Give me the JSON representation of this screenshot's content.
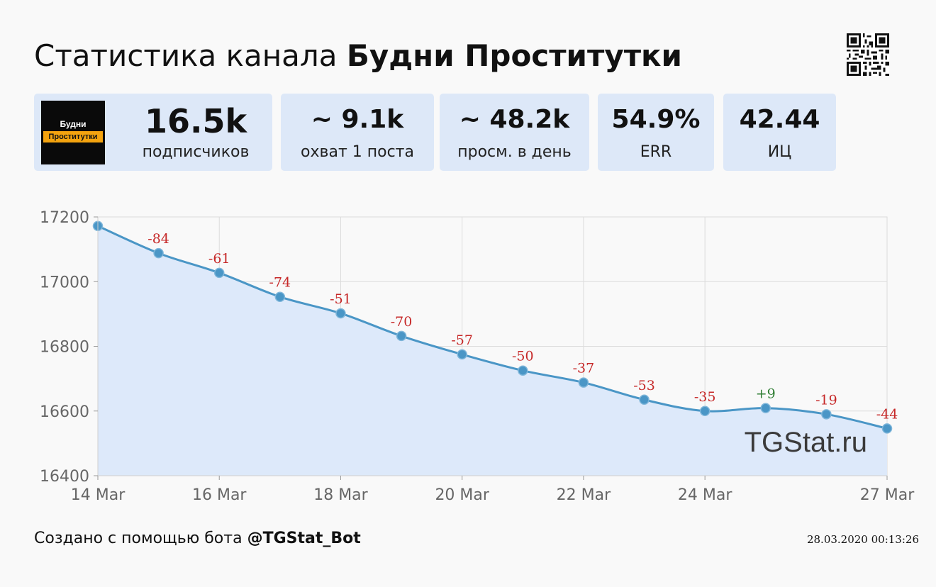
{
  "header": {
    "title_prefix": "Статистика канала",
    "channel_name": "Будни Проститутки"
  },
  "logo": {
    "line1": "Будни",
    "line2": "Проститутки"
  },
  "stats": [
    {
      "value": "16.5k",
      "label": "подписчиков"
    },
    {
      "value": "~ 9.1k",
      "label": "охват 1 поста"
    },
    {
      "value": "~ 48.2k",
      "label": "просм. в день"
    },
    {
      "value": "54.9%",
      "label": "ERR"
    },
    {
      "value": "42.44",
      "label": "ИЦ"
    }
  ],
  "chart_data": {
    "type": "area",
    "title": "",
    "xlabel": "",
    "ylabel": "",
    "x": [
      "2020-03-14",
      "2020-03-15",
      "2020-03-16",
      "2020-03-17",
      "2020-03-18",
      "2020-03-19",
      "2020-03-20",
      "2020-03-21",
      "2020-03-22",
      "2020-03-23",
      "2020-03-24",
      "2020-03-25",
      "2020-03-26",
      "2020-03-27"
    ],
    "values": [
      17172,
      17088,
      17027,
      16953,
      16902,
      16832,
      16775,
      16725,
      16688,
      16635,
      16600,
      16609,
      16590,
      16546
    ],
    "changes": [
      "",
      "-84",
      "-61",
      "-74",
      "-51",
      "-70",
      "-57",
      "-50",
      "-37",
      "-53",
      "-35",
      "+9",
      "-19",
      "-44"
    ],
    "xticks": [
      {
        "x": "2020-03-14",
        "label": "14 Mar"
      },
      {
        "x": "2020-03-16",
        "label": "16 Mar"
      },
      {
        "x": "2020-03-18",
        "label": "18 Mar"
      },
      {
        "x": "2020-03-20",
        "label": "20 Mar"
      },
      {
        "x": "2020-03-22",
        "label": "22 Mar"
      },
      {
        "x": "2020-03-24",
        "label": "24 Mar"
      },
      {
        "x": "2020-03-27",
        "label": "27 Mar"
      }
    ],
    "yticks": [
      16400,
      16600,
      16800,
      17000,
      17200
    ],
    "ylim": [
      16400,
      17200
    ],
    "grid": true,
    "watermark": "TGStat.ru",
    "colors": {
      "line": "#4a96c6",
      "fill": "#dde9fa",
      "negative_label": "#c62828",
      "positive_label": "#2e7d32"
    }
  },
  "footer": {
    "created_text": "Создано с помощью бота",
    "bot_handle": "@TGStat_Bot",
    "timestamp": "28.03.2020 00:13:26"
  }
}
